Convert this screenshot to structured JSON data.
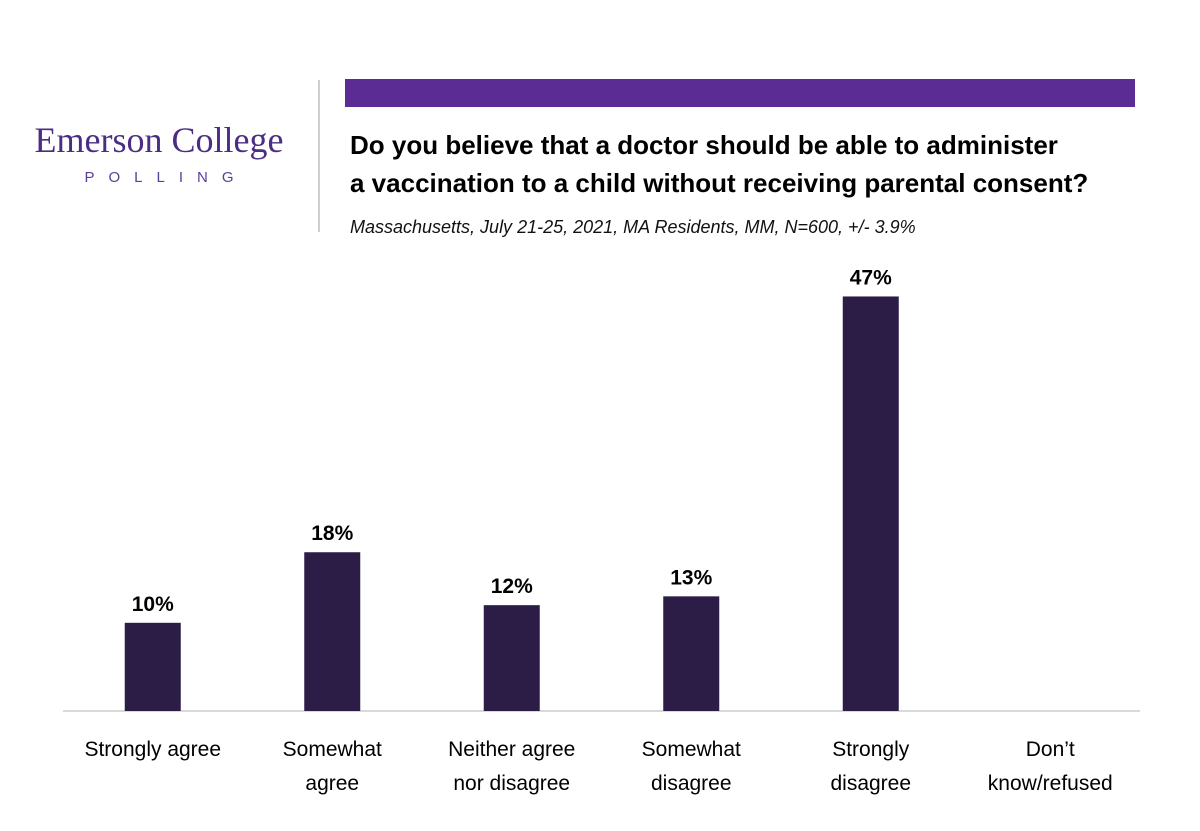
{
  "logo": {
    "name": "Emerson College",
    "sub": "POLLING"
  },
  "colors": {
    "accent": "#5b2c93",
    "bar": "#2c1d47",
    "logo": "#4b2e83"
  },
  "title_line1": "Do you believe that a doctor should be able to administer",
  "title_line2": "a vaccination to a child without receiving parental consent?",
  "subtitle": "Massachusetts, July 21-25, 2021, MA Residents, MM, N=600, +/- 3.9%",
  "chart_data": {
    "type": "bar",
    "title": "Do you believe that a doctor should be able to administer a vaccination to a child without receiving parental consent?",
    "subtitle": "Massachusetts, July 21-25, 2021, MA Residents, MM, N=600, +/- 3.9%",
    "categories": [
      [
        "Strongly agree"
      ],
      [
        "Somewhat",
        "agree"
      ],
      [
        "Neither agree",
        "nor disagree"
      ],
      [
        "Somewhat",
        "disagree"
      ],
      [
        "Strongly",
        "disagree"
      ],
      [
        "Don’t",
        "know/refused"
      ]
    ],
    "values": [
      10,
      18,
      12,
      13,
      47,
      null
    ],
    "value_labels": [
      "10%",
      "18%",
      "12%",
      "13%",
      "47%",
      ""
    ],
    "ylim": [
      0,
      50
    ],
    "grid": false,
    "legend": "none"
  }
}
